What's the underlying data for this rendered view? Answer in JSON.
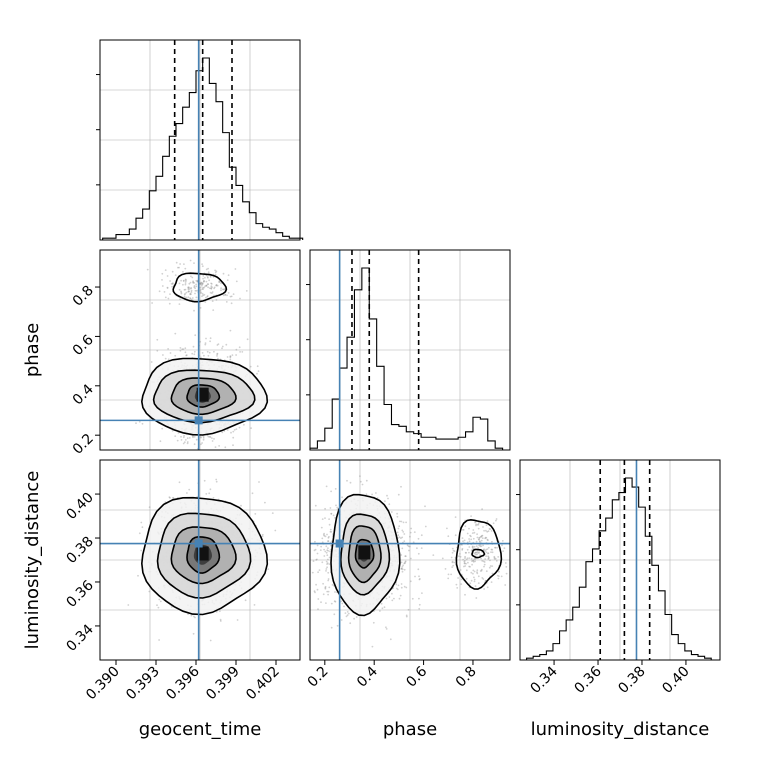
{
  "colors": {
    "truth": "#4682b4",
    "hist": "#000000",
    "grid": "#b0b0b0",
    "scatter": "#999999"
  },
  "chart_data": [
    {
      "type": "histogram",
      "panel": "hist-geocent_time",
      "parameter": "geocent_time",
      "x": [
        0.389,
        0.3895,
        0.39,
        0.3905,
        0.391,
        0.3915,
        0.392,
        0.3925,
        0.393,
        0.3935,
        0.394,
        0.3945,
        0.395,
        0.3955,
        0.396,
        0.3965,
        0.397,
        0.3975,
        0.398,
        0.3985,
        0.399,
        0.3995,
        0.4,
        0.4005,
        0.401,
        0.4015,
        0.402,
        0.4025,
        0.403,
        0.4035
      ],
      "counts": [
        0.01,
        0.01,
        0.03,
        0.03,
        0.06,
        0.12,
        0.17,
        0.27,
        0.35,
        0.46,
        0.57,
        0.64,
        0.73,
        0.81,
        0.93,
        1.0,
        0.86,
        0.76,
        0.59,
        0.4,
        0.3,
        0.21,
        0.15,
        0.09,
        0.07,
        0.06,
        0.04,
        0.02,
        0.01,
        0.01
      ],
      "xlim": [
        0.3888,
        0.4038
      ],
      "quantiles": [
        0.3944,
        0.3965,
        0.3987
      ],
      "truth": 0.3962
    },
    {
      "type": "scatter+contour",
      "panel": "2d-geocent_time-phase",
      "x_param": "geocent_time",
      "y_param": "phase",
      "xlim": [
        0.3888,
        0.4038
      ],
      "ylim": [
        0.14,
        0.95
      ],
      "ylabel": "phase",
      "yticks": [
        "0.2",
        "0.4",
        "0.6",
        "0.8"
      ],
      "truth": [
        0.3962,
        0.26
      ]
    },
    {
      "type": "histogram",
      "panel": "hist-phase",
      "parameter": "phase",
      "x": [
        0.14,
        0.17,
        0.2,
        0.23,
        0.26,
        0.29,
        0.32,
        0.35,
        0.38,
        0.41,
        0.44,
        0.47,
        0.5,
        0.53,
        0.56,
        0.59,
        0.62,
        0.65,
        0.68,
        0.71,
        0.74,
        0.77,
        0.8,
        0.83,
        0.86,
        0.89,
        0.92
      ],
      "counts": [
        0.01,
        0.05,
        0.12,
        0.28,
        0.45,
        0.62,
        0.88,
        1.0,
        0.72,
        0.46,
        0.25,
        0.14,
        0.13,
        0.1,
        0.09,
        0.07,
        0.07,
        0.06,
        0.06,
        0.06,
        0.07,
        0.1,
        0.18,
        0.17,
        0.05,
        0.01,
        0.0
      ],
      "xlim": [
        0.14,
        0.95
      ],
      "quantiles": [
        0.31,
        0.38,
        0.58
      ],
      "truth": 0.26
    },
    {
      "type": "scatter+contour",
      "panel": "2d-geocent_time-luminosity_distance",
      "x_param": "geocent_time",
      "y_param": "luminosity_distance",
      "xlim": [
        0.3888,
        0.4038
      ],
      "ylim": [
        0.3245,
        0.4155
      ],
      "xlabel": "geocent_time",
      "ylabel": "luminosity_distance",
      "xticks": [
        "0.390",
        "0.393",
        "0.396",
        "0.399",
        "0.402"
      ],
      "yticks": [
        "0.34",
        "0.36",
        "0.38",
        "0.40"
      ],
      "truth": [
        0.3962,
        0.3775
      ]
    },
    {
      "type": "scatter+contour",
      "panel": "2d-phase-luminosity_distance",
      "x_param": "phase",
      "y_param": "luminosity_distance",
      "xlim": [
        0.14,
        0.95
      ],
      "ylim": [
        0.3245,
        0.4155
      ],
      "xlabel": "phase",
      "xticks": [
        "0.2",
        "0.4",
        "0.6",
        "0.8"
      ],
      "truth": [
        0.26,
        0.3775
      ]
    },
    {
      "type": "histogram",
      "panel": "hist-luminosity_distance",
      "parameter": "luminosity_distance",
      "x": [
        0.3245,
        0.3275,
        0.3305,
        0.3335,
        0.3365,
        0.3395,
        0.3425,
        0.3455,
        0.3485,
        0.3515,
        0.3545,
        0.3575,
        0.3605,
        0.3635,
        0.3665,
        0.3695,
        0.3725,
        0.3755,
        0.3785,
        0.3815,
        0.3845,
        0.3875,
        0.3905,
        0.3935,
        0.3965,
        0.3995,
        0.4025,
        0.4055,
        0.4085,
        0.4115
      ],
      "counts": [
        0.0,
        0.01,
        0.02,
        0.03,
        0.05,
        0.09,
        0.16,
        0.22,
        0.29,
        0.4,
        0.54,
        0.61,
        0.71,
        0.78,
        0.88,
        0.92,
        1.0,
        0.95,
        0.84,
        0.68,
        0.52,
        0.38,
        0.25,
        0.14,
        0.09,
        0.05,
        0.03,
        0.02,
        0.01,
        0.0
      ],
      "xlim": [
        0.3245,
        0.4155
      ],
      "quantiles": [
        0.361,
        0.372,
        0.3835
      ],
      "truth": 0.3775,
      "xlabel": "luminosity_distance",
      "xticks": [
        "0.34",
        "0.36",
        "0.38",
        "0.40"
      ]
    }
  ]
}
